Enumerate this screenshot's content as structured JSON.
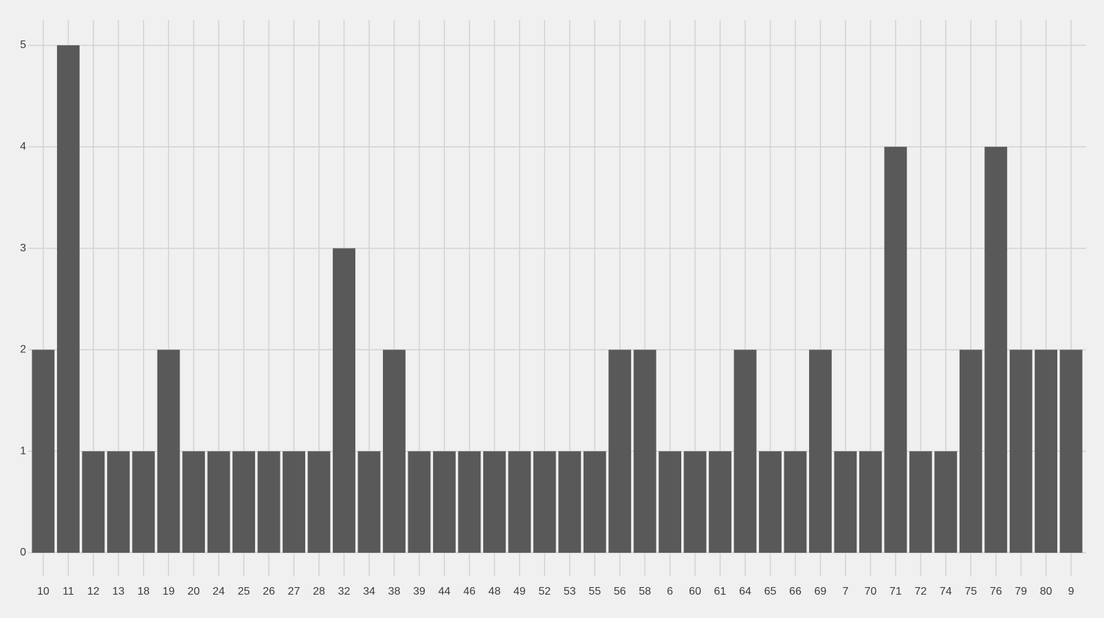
{
  "chart_data": {
    "type": "bar",
    "categories": [
      "10",
      "11",
      "12",
      "13",
      "18",
      "19",
      "20",
      "24",
      "25",
      "26",
      "27",
      "28",
      "32",
      "34",
      "38",
      "39",
      "44",
      "46",
      "48",
      "49",
      "52",
      "53",
      "55",
      "56",
      "58",
      "6",
      "60",
      "61",
      "64",
      "65",
      "66",
      "69",
      "7",
      "70",
      "71",
      "72",
      "74",
      "75",
      "76",
      "79",
      "80",
      "9"
    ],
    "values": [
      2,
      5,
      1,
      1,
      1,
      2,
      1,
      1,
      1,
      1,
      1,
      1,
      3,
      1,
      2,
      1,
      1,
      1,
      1,
      1,
      1,
      1,
      1,
      2,
      2,
      1,
      1,
      1,
      2,
      1,
      1,
      2,
      1,
      1,
      4,
      1,
      1,
      2,
      4,
      2,
      2,
      2
    ],
    "color": "#595959",
    "ylim": [
      0,
      5.25
    ],
    "yticks": [
      0,
      1,
      2,
      3,
      4,
      5
    ],
    "grid": true
  }
}
